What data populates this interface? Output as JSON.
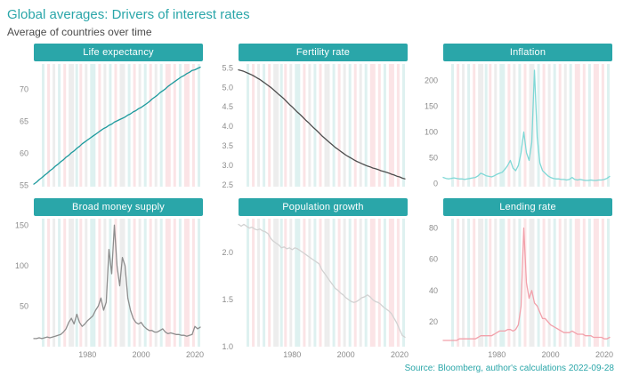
{
  "header": {
    "title": "Global averages: Drivers of interest rates",
    "subtitle": "Average of countries over time"
  },
  "footer": {
    "source": "Source: Bloomberg, author's calculations 2022-09-28"
  },
  "style": {
    "accent_teal": "#2aa6a9",
    "band_pink": "#fbe4e6",
    "band_teal": "#def1f0",
    "band_gray": "#ededed",
    "tick_text": "#8c8c8c"
  },
  "x_axis": {
    "range": [
      1960,
      2023
    ],
    "ticks": [
      1980,
      2000,
      2020
    ]
  },
  "background_bands": [
    {
      "year": 1963,
      "width": 1,
      "color": "teal"
    },
    {
      "year": 1965,
      "width": 1,
      "color": "pink"
    },
    {
      "year": 1967,
      "width": 1,
      "color": "gray"
    },
    {
      "year": 1969,
      "width": 1,
      "color": "teal"
    },
    {
      "year": 1971,
      "width": 1,
      "color": "pink"
    },
    {
      "year": 1973,
      "width": 2,
      "color": "gray"
    },
    {
      "year": 1975.5,
      "width": 1,
      "color": "teal"
    },
    {
      "year": 1977,
      "width": 1,
      "color": "pink"
    },
    {
      "year": 1979,
      "width": 1,
      "color": "gray"
    },
    {
      "year": 1981,
      "width": 2,
      "color": "teal"
    },
    {
      "year": 1984,
      "width": 1,
      "color": "pink"
    },
    {
      "year": 1986,
      "width": 1,
      "color": "gray"
    },
    {
      "year": 1988,
      "width": 1,
      "color": "teal"
    },
    {
      "year": 1990,
      "width": 1,
      "color": "pink"
    },
    {
      "year": 1992,
      "width": 2,
      "color": "gray"
    },
    {
      "year": 1995,
      "width": 1,
      "color": "teal"
    },
    {
      "year": 1997,
      "width": 1,
      "color": "pink"
    },
    {
      "year": 1999,
      "width": 1,
      "color": "gray"
    },
    {
      "year": 2001,
      "width": 1,
      "color": "teal"
    },
    {
      "year": 2003,
      "width": 1,
      "color": "pink"
    },
    {
      "year": 2005,
      "width": 1,
      "color": "gray"
    },
    {
      "year": 2007,
      "width": 1,
      "color": "teal"
    },
    {
      "year": 2009,
      "width": 2,
      "color": "pink"
    },
    {
      "year": 2012,
      "width": 1,
      "color": "pink"
    },
    {
      "year": 2014,
      "width": 1,
      "color": "teal"
    },
    {
      "year": 2016,
      "width": 2,
      "color": "pink"
    },
    {
      "year": 2019,
      "width": 1,
      "color": "pink"
    },
    {
      "year": 2021,
      "width": 1,
      "color": "teal"
    }
  ],
  "chart_data": [
    {
      "type": "line",
      "title": "Life expectancy",
      "color": "#1c9a9d",
      "x_start": 1960,
      "x_step": 1,
      "ylim": [
        54.8,
        74.0
      ],
      "yticks": [
        [
          55,
          "55"
        ],
        [
          60,
          "60"
        ],
        [
          65,
          "65"
        ],
        [
          70,
          "70"
        ]
      ],
      "values": [
        55.2,
        55.5,
        55.9,
        56.2,
        56.6,
        56.9,
        57.3,
        57.6,
        58.0,
        58.3,
        58.7,
        59.0,
        59.4,
        59.7,
        60.1,
        60.4,
        60.8,
        61.1,
        61.5,
        61.8,
        62.1,
        62.4,
        62.7,
        63.0,
        63.3,
        63.6,
        63.9,
        64.1,
        64.4,
        64.6,
        64.9,
        65.1,
        65.3,
        65.5,
        65.7,
        66.0,
        66.2,
        66.5,
        66.7,
        67.0,
        67.2,
        67.5,
        67.8,
        68.1,
        68.5,
        68.8,
        69.1,
        69.5,
        69.8,
        70.1,
        70.5,
        70.8,
        71.1,
        71.4,
        71.7,
        72.0,
        72.2,
        72.5,
        72.7,
        73.0,
        73.1,
        73.3,
        73.5
      ]
    },
    {
      "type": "line",
      "title": "Fertility rate",
      "color": "#4d4d4d",
      "x_start": 1960,
      "x_step": 1,
      "ylim": [
        2.45,
        5.6
      ],
      "yticks": [
        [
          2.5,
          "2.5"
        ],
        [
          3.0,
          "3.0"
        ],
        [
          3.5,
          "3.5"
        ],
        [
          4.0,
          "4.0"
        ],
        [
          4.5,
          "4.5"
        ],
        [
          5.0,
          "5.0"
        ],
        [
          5.5,
          "5.5"
        ]
      ],
      "values": [
        5.45,
        5.43,
        5.41,
        5.38,
        5.35,
        5.32,
        5.28,
        5.24,
        5.2,
        5.15,
        5.1,
        5.05,
        5.0,
        4.94,
        4.88,
        4.82,
        4.76,
        4.7,
        4.63,
        4.56,
        4.5,
        4.43,
        4.36,
        4.3,
        4.23,
        4.16,
        4.1,
        4.03,
        3.96,
        3.9,
        3.83,
        3.76,
        3.7,
        3.64,
        3.58,
        3.52,
        3.46,
        3.41,
        3.36,
        3.31,
        3.26,
        3.22,
        3.18,
        3.14,
        3.1,
        3.07,
        3.04,
        3.01,
        2.98,
        2.96,
        2.93,
        2.91,
        2.89,
        2.86,
        2.84,
        2.82,
        2.8,
        2.77,
        2.75,
        2.72,
        2.7,
        2.67,
        2.65
      ]
    },
    {
      "type": "line",
      "title": "Inflation",
      "color": "#7fd8d6",
      "x_start": 1960,
      "x_step": 1,
      "ylim": [
        -6,
        232
      ],
      "yticks": [
        [
          0,
          "0"
        ],
        [
          50,
          "50"
        ],
        [
          100,
          "100"
        ],
        [
          150,
          "150"
        ],
        [
          200,
          "200"
        ]
      ],
      "values": [
        12,
        10,
        9,
        10,
        11,
        10,
        9,
        9,
        8,
        9,
        10,
        11,
        12,
        15,
        20,
        18,
        15,
        14,
        13,
        15,
        18,
        20,
        22,
        28,
        35,
        45,
        30,
        25,
        35,
        60,
        100,
        60,
        45,
        80,
        220,
        90,
        40,
        25,
        20,
        15,
        12,
        10,
        9,
        9,
        8,
        8,
        7,
        8,
        12,
        8,
        7,
        8,
        7,
        6,
        6,
        7,
        6,
        6,
        7,
        7,
        8,
        10,
        14
      ]
    },
    {
      "type": "line",
      "title": "Broad money supply",
      "color": "#8d8d8d",
      "x_start": 1960,
      "x_step": 1,
      "ylim": [
        0,
        158
      ],
      "yticks": [
        [
          50,
          "50"
        ],
        [
          100,
          "100"
        ],
        [
          150,
          "150"
        ]
      ],
      "values": [
        10,
        10,
        11,
        10,
        11,
        12,
        11,
        12,
        13,
        14,
        15,
        18,
        22,
        30,
        35,
        28,
        40,
        30,
        25,
        28,
        32,
        35,
        38,
        45,
        50,
        60,
        45,
        55,
        120,
        90,
        150,
        100,
        75,
        110,
        100,
        60,
        45,
        35,
        30,
        28,
        30,
        25,
        22,
        20,
        20,
        18,
        18,
        20,
        22,
        18,
        16,
        17,
        16,
        15,
        15,
        14,
        14,
        13,
        14,
        15,
        25,
        22,
        24
      ]
    },
    {
      "type": "line",
      "title": "Population growth",
      "color": "#d2d2d2",
      "x_start": 1960,
      "x_step": 1,
      "ylim": [
        1.0,
        2.36
      ],
      "yticks": [
        [
          1.0,
          "1.0"
        ],
        [
          1.5,
          "1.5"
        ],
        [
          2.0,
          "2.0"
        ]
      ],
      "values": [
        2.3,
        2.28,
        2.3,
        2.28,
        2.26,
        2.27,
        2.25,
        2.24,
        2.25,
        2.23,
        2.22,
        2.2,
        2.15,
        2.12,
        2.1,
        2.08,
        2.05,
        2.06,
        2.04,
        2.05,
        2.03,
        2.05,
        2.04,
        2.02,
        2.0,
        1.98,
        1.96,
        1.94,
        1.92,
        1.9,
        1.88,
        1.82,
        1.78,
        1.74,
        1.7,
        1.66,
        1.62,
        1.6,
        1.57,
        1.55,
        1.52,
        1.5,
        1.48,
        1.47,
        1.48,
        1.5,
        1.52,
        1.53,
        1.55,
        1.53,
        1.5,
        1.48,
        1.47,
        1.45,
        1.42,
        1.4,
        1.38,
        1.35,
        1.3,
        1.25,
        1.18,
        1.12,
        1.1
      ]
    },
    {
      "type": "line",
      "title": "Lending rate",
      "color": "#f2a0aa",
      "x_start": 1960,
      "x_step": 1,
      "ylim": [
        4,
        86
      ],
      "yticks": [
        [
          20,
          "20"
        ],
        [
          40,
          "40"
        ],
        [
          60,
          "60"
        ],
        [
          80,
          "80"
        ]
      ],
      "values": [
        8,
        8,
        8,
        8,
        8,
        8,
        9,
        9,
        9,
        9,
        9,
        9,
        9,
        10,
        11,
        11,
        11,
        11,
        11,
        12,
        13,
        14,
        14,
        14,
        15,
        15,
        14,
        15,
        18,
        30,
        80,
        45,
        35,
        40,
        32,
        30,
        26,
        22,
        22,
        20,
        18,
        17,
        16,
        15,
        14,
        13,
        13,
        13,
        14,
        13,
        12,
        12,
        12,
        11,
        11,
        11,
        10,
        10,
        10,
        10,
        9,
        9,
        10
      ]
    }
  ]
}
